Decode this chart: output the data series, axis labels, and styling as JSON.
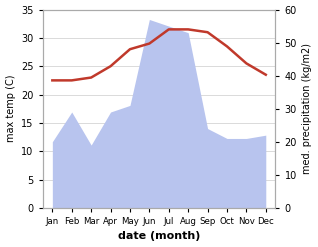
{
  "months": [
    "Jan",
    "Feb",
    "Mar",
    "Apr",
    "May",
    "Jun",
    "Jul",
    "Aug",
    "Sep",
    "Oct",
    "Nov",
    "Dec"
  ],
  "temp": [
    22.5,
    22.5,
    23.0,
    25.0,
    28.0,
    29.0,
    31.5,
    31.5,
    31.0,
    28.5,
    25.5,
    23.5
  ],
  "precip": [
    20,
    29,
    19,
    29,
    31,
    57,
    55,
    53,
    24,
    21,
    21,
    22
  ],
  "temp_color": "#c0392b",
  "precip_color": "#b8c4ee",
  "temp_ylim": [
    0,
    35
  ],
  "precip_ylim": [
    0,
    60
  ],
  "temp_ylabel": "max temp (C)",
  "precip_ylabel": "med. precipitation (kg/m2)",
  "xlabel": "date (month)",
  "temp_yticks": [
    0,
    5,
    10,
    15,
    20,
    25,
    30,
    35
  ],
  "precip_yticks": [
    0,
    10,
    20,
    30,
    40,
    50,
    60
  ],
  "background_color": "#ffffff"
}
